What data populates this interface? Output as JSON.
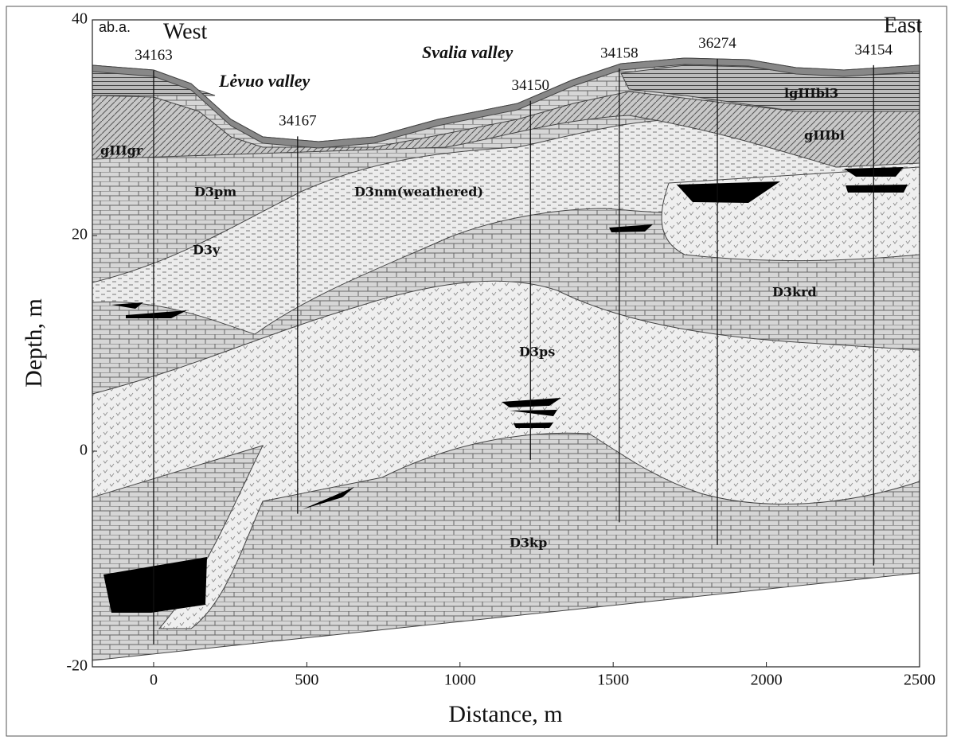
{
  "chart_data": {
    "type": "cross-section",
    "x_label": "Distance, m",
    "y_label": "Depth, m",
    "xlim": [
      -200,
      2500
    ],
    "ylim": [
      -20,
      40
    ],
    "xticks": [
      0,
      500,
      1000,
      1500,
      2000,
      2500
    ],
    "yticks": [
      -20,
      0,
      20,
      40
    ],
    "boreholes": [
      {
        "name": "34163",
        "x": 0,
        "top": 35.3,
        "bottom": -17.9
      },
      {
        "name": "34167",
        "x": 470,
        "top": 29.2,
        "bottom": -5.8
      },
      {
        "name": "34150",
        "x": 1230,
        "top": 32.5,
        "bottom": -0.8
      },
      {
        "name": "34158",
        "x": 1520,
        "top": 35.5,
        "bottom": -6.6
      },
      {
        "name": "36274",
        "x": 1840,
        "top": 36.4,
        "bottom": -8.7
      },
      {
        "name": "34154",
        "x": 2350,
        "top": 35.8,
        "bottom": -10.6
      }
    ],
    "annotations": {
      "datum": "ab.a.",
      "west": "West",
      "east": "East",
      "valley1": "Lėvuo valley",
      "valley2": "Svalia valley",
      "units": [
        "gIIIgr",
        "D3pm",
        "D3nm(weathered)",
        "D3y",
        "lgIIIbl3",
        "gIIIbl",
        "D3krd",
        "D3ps",
        "D3kp"
      ]
    }
  }
}
